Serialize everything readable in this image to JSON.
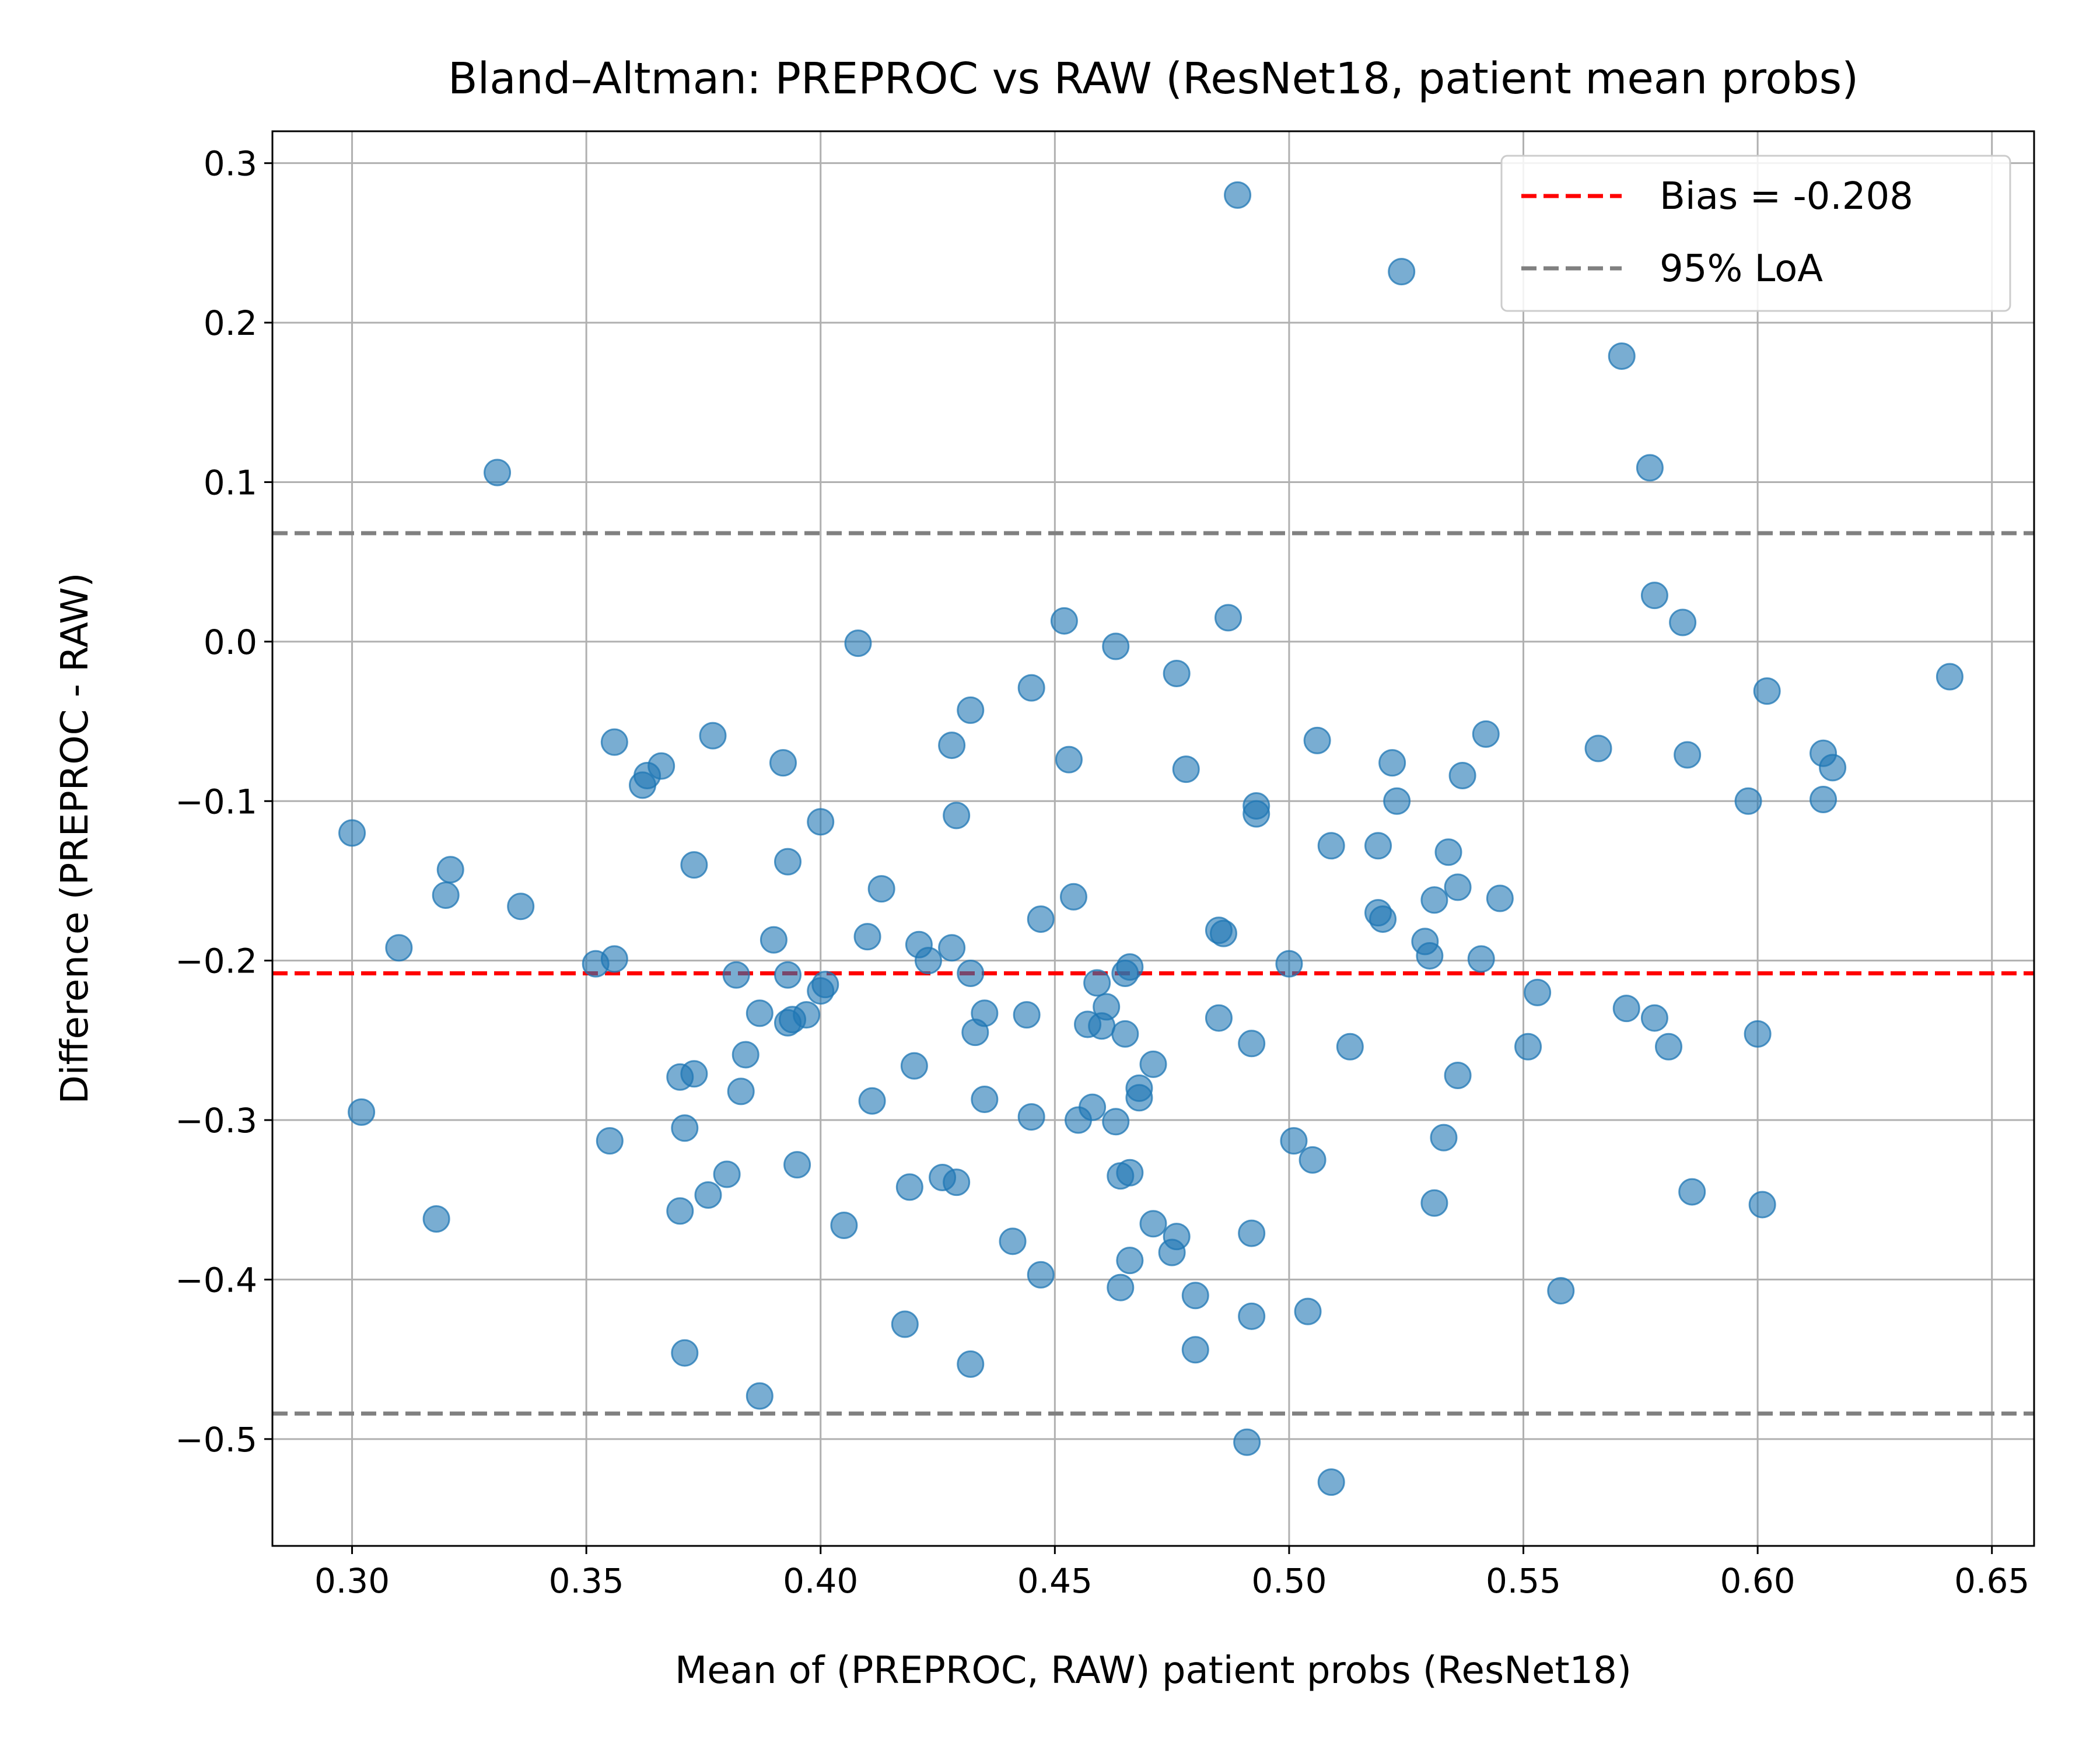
{
  "chart_data": {
    "type": "scatter",
    "title": "Bland–Altman: PREPROC vs RAW (ResNet18, patient mean probs)",
    "xlabel": "Mean of (PREPROC, RAW) patient probs (ResNet18)",
    "ylabel": "Difference (PREPROC - RAW)",
    "xlim": [
      0.283,
      0.659
    ],
    "ylim": [
      -0.567,
      0.32
    ],
    "xticks": [
      0.3,
      0.35,
      0.4,
      0.45,
      0.5,
      0.55,
      0.6,
      0.65
    ],
    "xtick_labels": [
      "0.30",
      "0.35",
      "0.40",
      "0.45",
      "0.50",
      "0.55",
      "0.60",
      "0.65"
    ],
    "yticks": [
      0.3,
      0.2,
      0.1,
      0.0,
      -0.1,
      -0.2,
      -0.3,
      -0.4,
      -0.5
    ],
    "ytick_labels": [
      "0.3",
      "0.2",
      "0.1",
      "0.0",
      "−0.1",
      "−0.2",
      "−0.3",
      "−0.4",
      "−0.5"
    ],
    "grid": true,
    "legend_position": "top-right",
    "bias": -0.208,
    "loa_upper": 0.068,
    "loa_lower": -0.484,
    "legend": [
      {
        "label": "Bias = -0.208",
        "style": "dashed",
        "color": "#ff0000"
      },
      {
        "label": "95% LoA",
        "style": "dashed",
        "color": "#808080"
      }
    ],
    "point_color": "#1f77b4",
    "points": [
      {
        "x": 0.3,
        "y": -0.12
      },
      {
        "x": 0.302,
        "y": -0.295
      },
      {
        "x": 0.31,
        "y": -0.192
      },
      {
        "x": 0.318,
        "y": -0.362
      },
      {
        "x": 0.32,
        "y": -0.159
      },
      {
        "x": 0.321,
        "y": -0.143
      },
      {
        "x": 0.331,
        "y": 0.106
      },
      {
        "x": 0.336,
        "y": -0.166
      },
      {
        "x": 0.352,
        "y": -0.202
      },
      {
        "x": 0.355,
        "y": -0.313
      },
      {
        "x": 0.356,
        "y": -0.199
      },
      {
        "x": 0.356,
        "y": -0.063
      },
      {
        "x": 0.362,
        "y": -0.09
      },
      {
        "x": 0.363,
        "y": -0.084
      },
      {
        "x": 0.366,
        "y": -0.078
      },
      {
        "x": 0.37,
        "y": -0.357
      },
      {
        "x": 0.371,
        "y": -0.446
      },
      {
        "x": 0.371,
        "y": -0.305
      },
      {
        "x": 0.37,
        "y": -0.273
      },
      {
        "x": 0.373,
        "y": -0.271
      },
      {
        "x": 0.373,
        "y": -0.14
      },
      {
        "x": 0.377,
        "y": -0.059
      },
      {
        "x": 0.376,
        "y": -0.347
      },
      {
        "x": 0.38,
        "y": -0.334
      },
      {
        "x": 0.382,
        "y": -0.209
      },
      {
        "x": 0.383,
        "y": -0.282
      },
      {
        "x": 0.384,
        "y": -0.259
      },
      {
        "x": 0.387,
        "y": -0.473
      },
      {
        "x": 0.387,
        "y": -0.233
      },
      {
        "x": 0.39,
        "y": -0.187
      },
      {
        "x": 0.392,
        "y": -0.076
      },
      {
        "x": 0.393,
        "y": -0.138
      },
      {
        "x": 0.393,
        "y": -0.209
      },
      {
        "x": 0.393,
        "y": -0.239
      },
      {
        "x": 0.394,
        "y": -0.237
      },
      {
        "x": 0.395,
        "y": -0.328
      },
      {
        "x": 0.397,
        "y": -0.234
      },
      {
        "x": 0.4,
        "y": -0.113
      },
      {
        "x": 0.4,
        "y": -0.219
      },
      {
        "x": 0.401,
        "y": -0.215
      },
      {
        "x": 0.405,
        "y": -0.366
      },
      {
        "x": 0.408,
        "y": -0.001
      },
      {
        "x": 0.41,
        "y": -0.185
      },
      {
        "x": 0.411,
        "y": -0.288
      },
      {
        "x": 0.413,
        "y": -0.155
      },
      {
        "x": 0.418,
        "y": -0.428
      },
      {
        "x": 0.419,
        "y": -0.342
      },
      {
        "x": 0.42,
        "y": -0.266
      },
      {
        "x": 0.421,
        "y": -0.19
      },
      {
        "x": 0.423,
        "y": -0.2
      },
      {
        "x": 0.426,
        "y": -0.336
      },
      {
        "x": 0.428,
        "y": -0.065
      },
      {
        "x": 0.428,
        "y": -0.192
      },
      {
        "x": 0.429,
        "y": -0.339
      },
      {
        "x": 0.429,
        "y": -0.109
      },
      {
        "x": 0.432,
        "y": -0.043
      },
      {
        "x": 0.432,
        "y": -0.208
      },
      {
        "x": 0.432,
        "y": -0.453
      },
      {
        "x": 0.433,
        "y": -0.245
      },
      {
        "x": 0.435,
        "y": -0.287
      },
      {
        "x": 0.435,
        "y": -0.233
      },
      {
        "x": 0.441,
        "y": -0.376
      },
      {
        "x": 0.444,
        "y": -0.234
      },
      {
        "x": 0.445,
        "y": -0.029
      },
      {
        "x": 0.445,
        "y": -0.298
      },
      {
        "x": 0.447,
        "y": -0.397
      },
      {
        "x": 0.447,
        "y": -0.174
      },
      {
        "x": 0.452,
        "y": 0.013
      },
      {
        "x": 0.453,
        "y": -0.074
      },
      {
        "x": 0.454,
        "y": -0.16
      },
      {
        "x": 0.455,
        "y": -0.3
      },
      {
        "x": 0.457,
        "y": -0.24
      },
      {
        "x": 0.458,
        "y": -0.292
      },
      {
        "x": 0.459,
        "y": -0.214
      },
      {
        "x": 0.46,
        "y": -0.241
      },
      {
        "x": 0.461,
        "y": -0.229
      },
      {
        "x": 0.463,
        "y": -0.003
      },
      {
        "x": 0.463,
        "y": -0.301
      },
      {
        "x": 0.464,
        "y": -0.405
      },
      {
        "x": 0.464,
        "y": -0.335
      },
      {
        "x": 0.465,
        "y": -0.208
      },
      {
        "x": 0.465,
        "y": -0.246
      },
      {
        "x": 0.466,
        "y": -0.204
      },
      {
        "x": 0.466,
        "y": -0.333
      },
      {
        "x": 0.466,
        "y": -0.388
      },
      {
        "x": 0.468,
        "y": -0.28
      },
      {
        "x": 0.468,
        "y": -0.286
      },
      {
        "x": 0.471,
        "y": -0.265
      },
      {
        "x": 0.471,
        "y": -0.365
      },
      {
        "x": 0.475,
        "y": -0.383
      },
      {
        "x": 0.476,
        "y": -0.02
      },
      {
        "x": 0.476,
        "y": -0.373
      },
      {
        "x": 0.478,
        "y": -0.08
      },
      {
        "x": 0.48,
        "y": -0.41
      },
      {
        "x": 0.48,
        "y": -0.444
      },
      {
        "x": 0.485,
        "y": -0.236
      },
      {
        "x": 0.485,
        "y": -0.181
      },
      {
        "x": 0.486,
        "y": -0.183
      },
      {
        "x": 0.487,
        "y": 0.015
      },
      {
        "x": 0.489,
        "y": 0.28
      },
      {
        "x": 0.491,
        "y": -0.502
      },
      {
        "x": 0.492,
        "y": -0.252
      },
      {
        "x": 0.492,
        "y": -0.371
      },
      {
        "x": 0.492,
        "y": -0.423
      },
      {
        "x": 0.493,
        "y": -0.103
      },
      {
        "x": 0.493,
        "y": -0.108
      },
      {
        "x": 0.5,
        "y": -0.202
      },
      {
        "x": 0.501,
        "y": -0.313
      },
      {
        "x": 0.504,
        "y": -0.42
      },
      {
        "x": 0.505,
        "y": -0.325
      },
      {
        "x": 0.506,
        "y": -0.062
      },
      {
        "x": 0.509,
        "y": -0.128
      },
      {
        "x": 0.509,
        "y": -0.527
      },
      {
        "x": 0.513,
        "y": -0.254
      },
      {
        "x": 0.519,
        "y": -0.128
      },
      {
        "x": 0.519,
        "y": -0.17
      },
      {
        "x": 0.52,
        "y": -0.174
      },
      {
        "x": 0.522,
        "y": -0.076
      },
      {
        "x": 0.523,
        "y": -0.1
      },
      {
        "x": 0.524,
        "y": 0.232
      },
      {
        "x": 0.529,
        "y": -0.188
      },
      {
        "x": 0.53,
        "y": -0.197
      },
      {
        "x": 0.531,
        "y": -0.162
      },
      {
        "x": 0.531,
        "y": -0.352
      },
      {
        "x": 0.533,
        "y": -0.311
      },
      {
        "x": 0.534,
        "y": -0.132
      },
      {
        "x": 0.536,
        "y": -0.272
      },
      {
        "x": 0.536,
        "y": -0.154
      },
      {
        "x": 0.537,
        "y": -0.084
      },
      {
        "x": 0.541,
        "y": -0.199
      },
      {
        "x": 0.542,
        "y": -0.058
      },
      {
        "x": 0.545,
        "y": -0.161
      },
      {
        "x": 0.551,
        "y": -0.254
      },
      {
        "x": 0.553,
        "y": -0.22
      },
      {
        "x": 0.558,
        "y": -0.407
      },
      {
        "x": 0.566,
        "y": -0.067
      },
      {
        "x": 0.571,
        "y": 0.179
      },
      {
        "x": 0.572,
        "y": -0.23
      },
      {
        "x": 0.577,
        "y": 0.109
      },
      {
        "x": 0.578,
        "y": 0.029
      },
      {
        "x": 0.578,
        "y": -0.236
      },
      {
        "x": 0.581,
        "y": -0.254
      },
      {
        "x": 0.584,
        "y": 0.012
      },
      {
        "x": 0.585,
        "y": -0.071
      },
      {
        "x": 0.586,
        "y": -0.345
      },
      {
        "x": 0.598,
        "y": -0.1
      },
      {
        "x": 0.6,
        "y": -0.246
      },
      {
        "x": 0.601,
        "y": -0.353
      },
      {
        "x": 0.602,
        "y": -0.031
      },
      {
        "x": 0.614,
        "y": -0.07
      },
      {
        "x": 0.614,
        "y": -0.099
      },
      {
        "x": 0.616,
        "y": -0.079
      },
      {
        "x": 0.641,
        "y": -0.022
      }
    ]
  }
}
